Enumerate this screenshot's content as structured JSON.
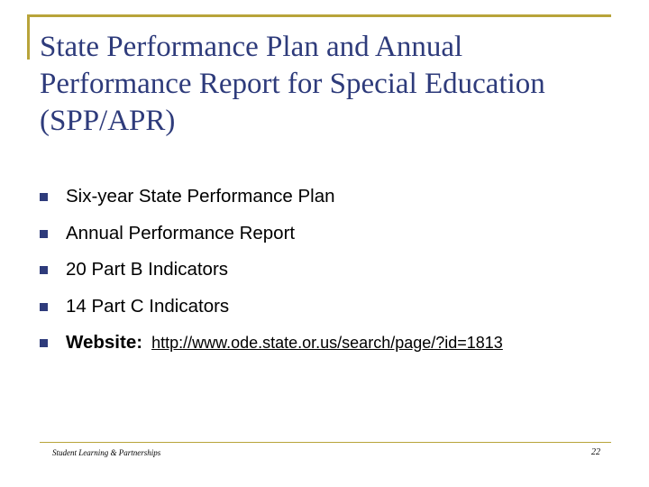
{
  "slide": {
    "title": "State Performance Plan and Annual Performance Report for Special Education (SPP/APR)",
    "bullets": [
      "Six-year State Performance Plan",
      "Annual Performance Report",
      "20 Part B Indicators",
      "14 Part C Indicators"
    ],
    "website": {
      "label": "Website:",
      "url": "http://www.ode.state.or.us/search/page/?id=1813"
    },
    "footer": {
      "text": "Student Learning & Partnerships",
      "page_number": "22"
    }
  },
  "colors": {
    "accent_gold": "#b8a43a",
    "title_navy": "#2e3b7b",
    "bullet_navy": "#2e3b7b"
  }
}
